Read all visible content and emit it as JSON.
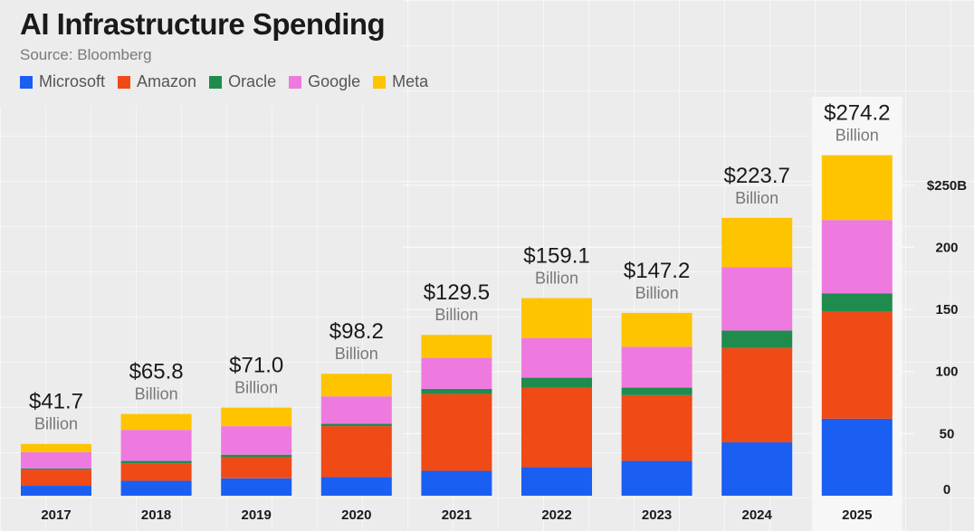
{
  "header": {
    "title": "AI Infrastructure Spending",
    "source": "Source: Bloomberg"
  },
  "colors": {
    "Microsoft": "#1a5ef2",
    "Amazon": "#f04a17",
    "Oracle": "#1f8c4e",
    "Google": "#ee7ae0",
    "Meta": "#ffc400",
    "highlight": "#f7f7f7",
    "background": "#ececec"
  },
  "chart_data": {
    "type": "bar",
    "stacked": true,
    "title": "AI Infrastructure Spending",
    "subtitle": "Source: Bloomberg",
    "categories": [
      "2017",
      "2018",
      "2019",
      "2020",
      "2021",
      "2022",
      "2023",
      "2024",
      "2025"
    ],
    "series": [
      {
        "name": "Microsoft",
        "values": [
          8,
          12,
          14,
          15,
          20,
          23,
          28,
          43,
          62
        ]
      },
      {
        "name": "Amazon",
        "values": [
          13,
          14,
          17,
          41,
          62,
          64,
          53,
          76,
          86
        ]
      },
      {
        "name": "Oracle",
        "values": [
          1,
          2,
          2,
          2,
          4,
          8,
          6,
          14,
          15
        ]
      },
      {
        "name": "Google",
        "values": [
          13,
          25,
          23,
          22,
          25,
          32,
          33,
          51,
          59
        ]
      },
      {
        "name": "Meta",
        "values": [
          6.7,
          12.8,
          15,
          18.2,
          18.5,
          32.1,
          27.2,
          39.7,
          52.2
        ]
      }
    ],
    "totals": [
      "$41.7",
      "$65.8",
      "$71.0",
      "$98.2",
      "$129.5",
      "$159.1",
      "$147.2",
      "$223.7",
      "$274.2"
    ],
    "total_unit": "Billion",
    "highlighted_category": "2025",
    "yaxis": {
      "ticks": [
        0,
        50,
        100,
        150,
        200,
        250
      ],
      "tick_labels": [
        "0",
        "50",
        "100",
        "150",
        "200",
        "$250B"
      ],
      "position": "right"
    },
    "ylim": [
      0,
      300
    ],
    "legend_position": "top-left",
    "grid": true
  }
}
